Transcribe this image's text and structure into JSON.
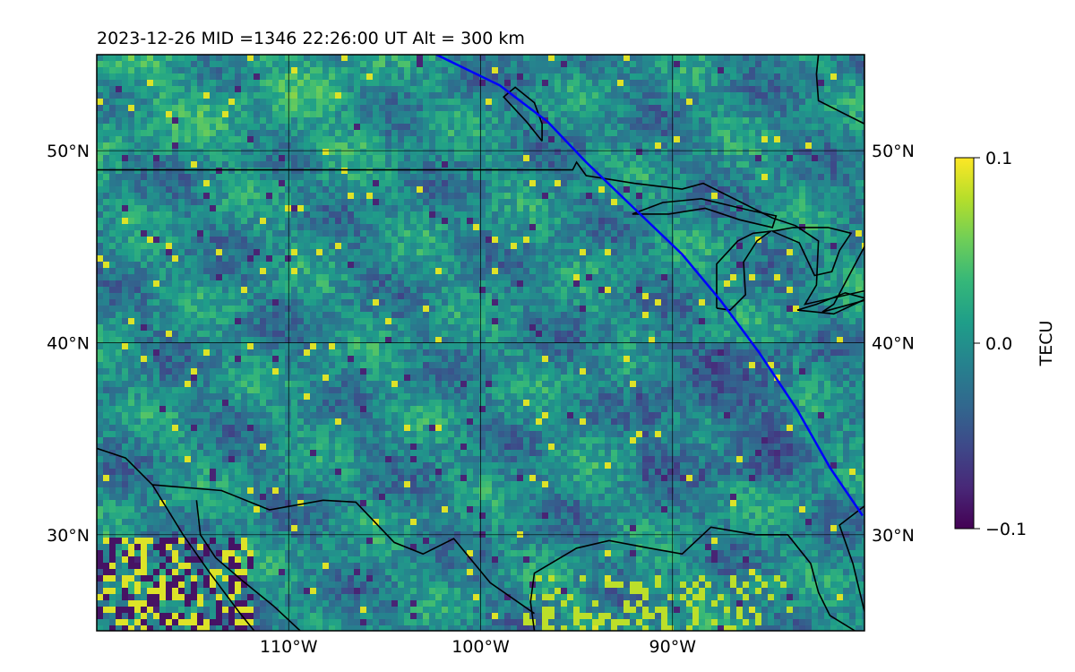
{
  "title": "2023-12-26  MID =1346    22:26:00  UT  Alt = 300 km",
  "map": {
    "lon_range": [
      -120,
      -80
    ],
    "lat_range": [
      25,
      55
    ],
    "gridlines": true,
    "lat_labels": [
      {
        "lat": 50,
        "label": "50°N"
      },
      {
        "lat": 40,
        "label": "40°N"
      },
      {
        "lat": 30,
        "label": "30°N"
      }
    ],
    "lon_labels": [
      {
        "lon": -110,
        "label": "110°W"
      },
      {
        "lon": -100,
        "label": "100°W"
      },
      {
        "lon": -90,
        "label": "90°W"
      }
    ],
    "satellite_track": {
      "color": "#0000ff",
      "points": [
        [
          -102.3,
          55
        ],
        [
          -99.0,
          53.4
        ],
        [
          -96.5,
          51.5
        ],
        [
          -94.5,
          49.4
        ],
        [
          -92.0,
          47.0
        ],
        [
          -89.5,
          44.6
        ],
        [
          -87.5,
          42.2
        ],
        [
          -85.5,
          39.5
        ],
        [
          -83.5,
          36.5
        ],
        [
          -81.8,
          33.5
        ],
        [
          -80.1,
          31.0
        ]
      ]
    },
    "coastlines": [
      [
        [
          -120,
          34.5
        ],
        [
          -118.5,
          34.0
        ],
        [
          -117.1,
          32.6
        ],
        [
          -115.5,
          30.0
        ],
        [
          -114.1,
          28.0
        ],
        [
          -112.6,
          26.0
        ],
        [
          -111.8,
          25.0
        ]
      ],
      [
        [
          -114.8,
          31.8
        ],
        [
          -114.6,
          30.0
        ],
        [
          -113.8,
          28.8
        ],
        [
          -112.4,
          27.6
        ],
        [
          -110.8,
          26.3
        ],
        [
          -109.4,
          25.0
        ]
      ],
      [
        [
          -117.1,
          32.6
        ],
        [
          -113.5,
          32.3
        ],
        [
          -111.0,
          31.3
        ],
        [
          -108.2,
          31.8
        ],
        [
          -106.5,
          31.7
        ],
        [
          -104.5,
          29.6
        ],
        [
          -103.0,
          29.0
        ],
        [
          -101.4,
          29.8
        ],
        [
          -99.5,
          27.5
        ],
        [
          -97.2,
          25.9
        ]
      ],
      [
        [
          -97.2,
          25.0
        ],
        [
          -97.4,
          26.5
        ],
        [
          -97.2,
          28.0
        ],
        [
          -95.0,
          29.3
        ],
        [
          -93.3,
          29.7
        ],
        [
          -91.2,
          29.3
        ],
        [
          -89.5,
          29.0
        ],
        [
          -88.0,
          30.4
        ],
        [
          -85.7,
          30.0
        ],
        [
          -84.0,
          30.0
        ],
        [
          -82.8,
          28.5
        ],
        [
          -82.4,
          27.0
        ],
        [
          -81.8,
          25.8
        ],
        [
          -80.5,
          25.0
        ]
      ],
      [
        [
          -80.0,
          26.0
        ],
        [
          -80.6,
          28.5
        ],
        [
          -81.3,
          30.5
        ],
        [
          -80.0,
          31.5
        ]
      ]
    ],
    "borders": [
      [
        [
          -120,
          49.0
        ],
        [
          -95.2,
          49.0
        ],
        [
          -95.0,
          49.4
        ],
        [
          -94.5,
          48.7
        ],
        [
          -92.0,
          48.3
        ],
        [
          -89.5,
          48.0
        ],
        [
          -88.4,
          48.3
        ],
        [
          -84.8,
          46.5
        ],
        [
          -83.6,
          46.1
        ],
        [
          -82.4,
          45.3
        ],
        [
          -82.5,
          43.0
        ],
        [
          -83.1,
          42.0
        ],
        [
          -80.0,
          42.7
        ]
      ],
      [
        [
          -80.0,
          45.0
        ],
        [
          -81.6,
          42.0
        ],
        [
          -82.2,
          41.6
        ],
        [
          -80.0,
          42.2
        ]
      ]
    ],
    "lakes": [
      [
        [
          -92.1,
          46.7
        ],
        [
          -90.5,
          47.3
        ],
        [
          -88.5,
          47.5
        ],
        [
          -86.0,
          46.9
        ],
        [
          -84.6,
          46.6
        ],
        [
          -84.8,
          46.0
        ],
        [
          -86.5,
          46.4
        ],
        [
          -88.3,
          47.0
        ],
        [
          -90.2,
          46.7
        ],
        [
          -92.1,
          46.7
        ]
      ],
      [
        [
          -87.7,
          41.8
        ],
        [
          -87.0,
          41.7
        ],
        [
          -86.2,
          42.5
        ],
        [
          -86.3,
          44.2
        ],
        [
          -85.6,
          45.3
        ],
        [
          -84.9,
          45.8
        ],
        [
          -85.8,
          45.7
        ],
        [
          -86.6,
          45.3
        ],
        [
          -87.7,
          44.1
        ],
        [
          -87.7,
          41.8
        ]
      ],
      [
        [
          -84.8,
          45.8
        ],
        [
          -83.4,
          45.2
        ],
        [
          -82.6,
          43.5
        ],
        [
          -81.7,
          43.7
        ],
        [
          -81.3,
          44.8
        ],
        [
          -80.7,
          45.7
        ],
        [
          -81.9,
          46.0
        ],
        [
          -83.7,
          46.0
        ],
        [
          -84.8,
          45.8
        ]
      ],
      [
        [
          -83.5,
          41.7
        ],
        [
          -81.6,
          41.5
        ],
        [
          -79.9,
          42.3
        ],
        [
          -81.0,
          42.6
        ],
        [
          -82.5,
          42.0
        ],
        [
          -83.5,
          41.7
        ]
      ],
      [
        [
          -96.8,
          50.5
        ],
        [
          -97.6,
          51.5
        ],
        [
          -98.8,
          52.8
        ],
        [
          -98.2,
          53.3
        ],
        [
          -97.2,
          52.5
        ],
        [
          -96.8,
          51.4
        ],
        [
          -96.8,
          50.5
        ]
      ],
      [
        [
          -80.0,
          55.0
        ],
        [
          -80.0,
          51.4
        ],
        [
          -82.4,
          52.6
        ],
        [
          -82.5,
          54.0
        ],
        [
          -82.4,
          55.0
        ]
      ]
    ]
  },
  "colorbar": {
    "label": "TECU",
    "min": -0.1,
    "max": 0.1,
    "ticks": [
      {
        "value": 0.1,
        "label": "0.1"
      },
      {
        "value": 0.0,
        "label": "0.0"
      },
      {
        "value": -0.1,
        "label": "−0.1"
      }
    ],
    "colormap": [
      "#440154",
      "#482878",
      "#3e4989",
      "#31688e",
      "#26828e",
      "#1f9e89",
      "#35b779",
      "#6ece58",
      "#b5de2b",
      "#fde725"
    ]
  },
  "colors": {
    "axes": "#000000",
    "grid": "#000000",
    "boundaries": "#000000"
  }
}
